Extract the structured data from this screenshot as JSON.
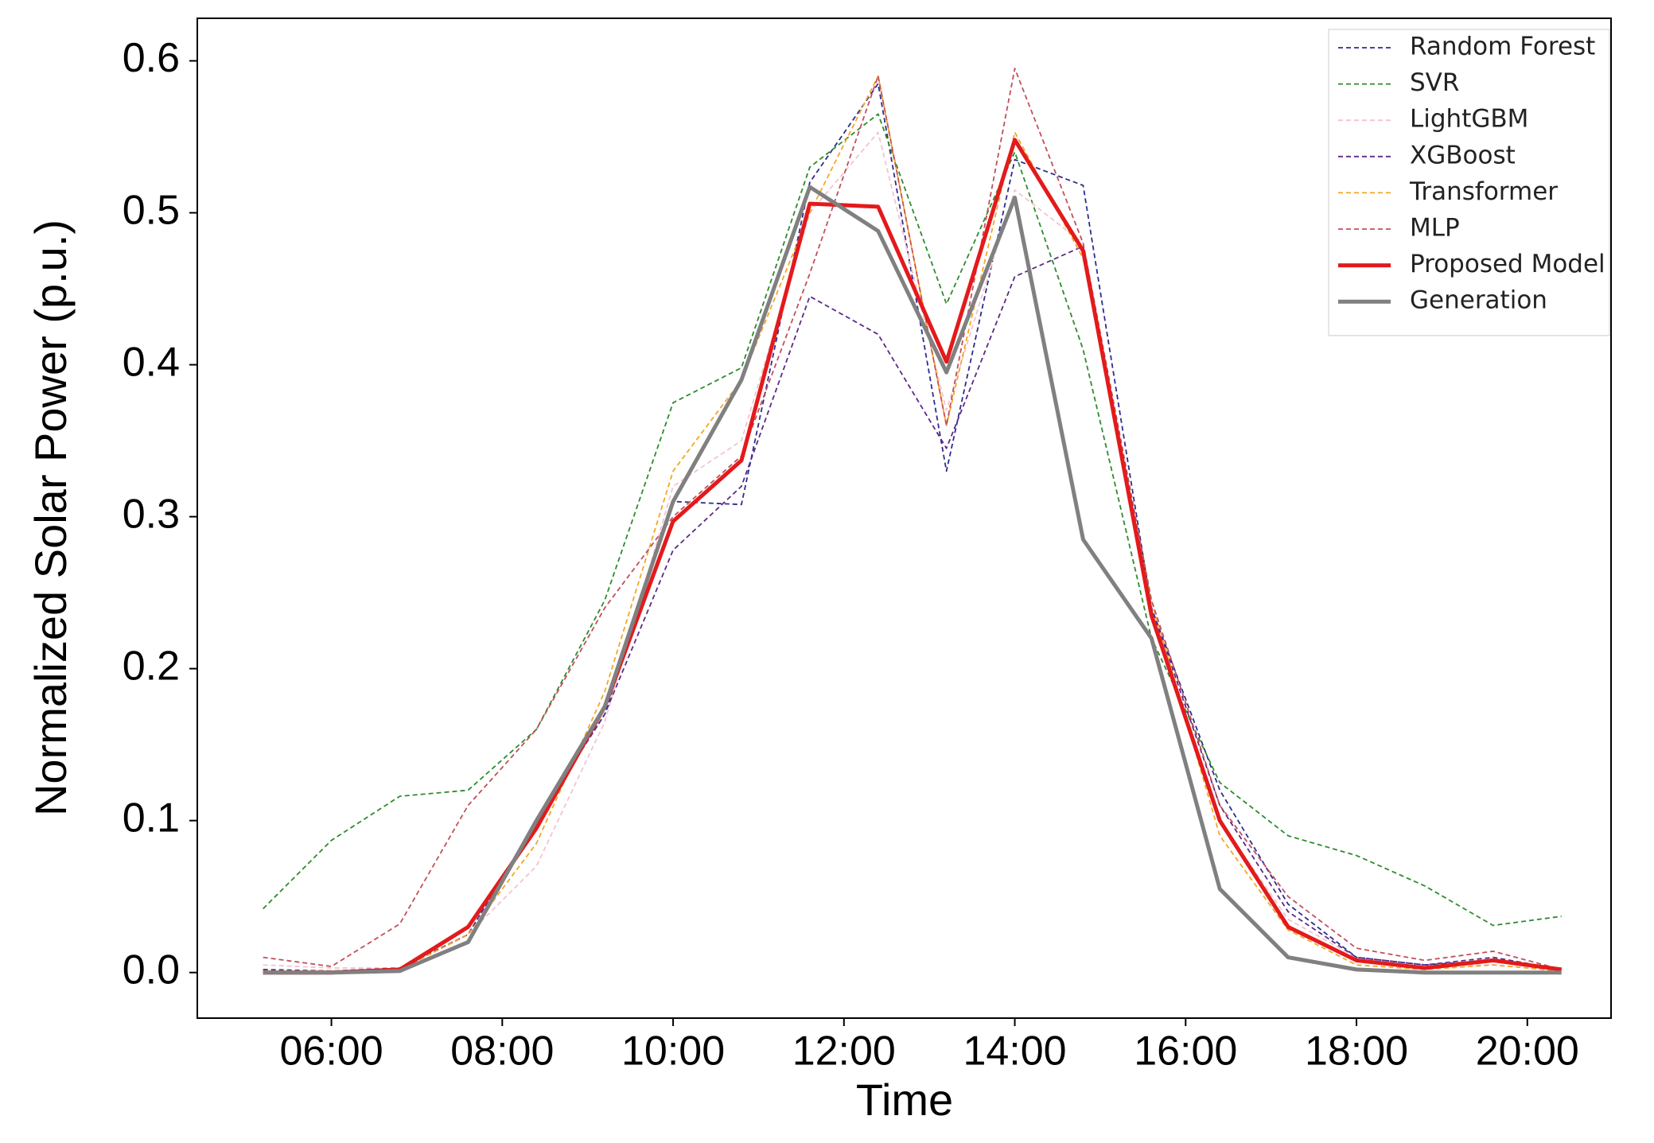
{
  "chart_data": {
    "type": "line",
    "xlabel": "Time",
    "ylabel": "Normalized Solar Power (p.u.)",
    "x": [
      5.2,
      6,
      6.8,
      7.6,
      8.4,
      9.2,
      10,
      10.8,
      11.6,
      12.4,
      13.2,
      14,
      14.8,
      15.6,
      16.4,
      17.2,
      18,
      18.8,
      19.6,
      20.4
    ],
    "xlim": [
      4.43,
      20.98
    ],
    "xticks": [
      {
        "value": 6,
        "label": "06:00"
      },
      {
        "value": 8,
        "label": "08:00"
      },
      {
        "value": 10,
        "label": "10:00"
      },
      {
        "value": 12,
        "label": "12:00"
      },
      {
        "value": 14,
        "label": "14:00"
      },
      {
        "value": 16,
        "label": "16:00"
      },
      {
        "value": 18,
        "label": "18:00"
      },
      {
        "value": 20,
        "label": "20:00"
      }
    ],
    "ylim": [
      -0.03,
      0.628
    ],
    "yticks": [
      {
        "value": 0,
        "label": "0.0"
      },
      0.1,
      0.2,
      0.3,
      0.4,
      0.5,
      0.6
    ],
    "legend": "upper right",
    "series": [
      {
        "name": "Random Forest",
        "color": "#2c2c8f",
        "style": "dashed",
        "values": [
          0.002,
          0.001,
          0.002,
          0.025,
          0.1,
          0.17,
          0.31,
          0.308,
          0.52,
          0.585,
          0.33,
          0.535,
          0.518,
          0.24,
          0.12,
          0.045,
          0.01,
          0.005,
          0.008,
          0.002
        ]
      },
      {
        "name": "SVR",
        "color": "#2e8b2e",
        "style": "dashed",
        "values": [
          0.042,
          0.087,
          0.116,
          0.12,
          0.16,
          0.245,
          0.375,
          0.398,
          0.53,
          0.565,
          0.44,
          0.54,
          0.41,
          0.22,
          0.125,
          0.09,
          0.077,
          0.057,
          0.031,
          0.037
        ]
      },
      {
        "name": "LightGBM",
        "color": "#f2c4d0",
        "style": "dashed",
        "values": [
          0.005,
          0.003,
          0.003,
          0.025,
          0.07,
          0.165,
          0.32,
          0.35,
          0.5,
          0.553,
          0.37,
          0.515,
          0.48,
          0.24,
          0.1,
          0.035,
          0.01,
          0.005,
          0.005,
          0.001
        ]
      },
      {
        "name": "XGBoost",
        "color": "#5b2a86",
        "style": "dashed",
        "values": [
          0.001,
          0.001,
          0.003,
          0.025,
          0.1,
          0.17,
          0.278,
          0.32,
          0.445,
          0.42,
          0.345,
          0.458,
          0.478,
          0.24,
          0.11,
          0.04,
          0.01,
          0.005,
          0.01,
          0.002
        ]
      },
      {
        "name": "Transformer",
        "color": "#f5a623",
        "style": "dashed",
        "values": [
          0.001,
          0.001,
          0.002,
          0.025,
          0.085,
          0.185,
          0.33,
          0.39,
          0.5,
          0.59,
          0.36,
          0.553,
          0.47,
          0.245,
          0.09,
          0.028,
          0.005,
          0.002,
          0.005,
          0.001
        ]
      },
      {
        "name": "MLP",
        "color": "#c0505a",
        "style": "dashed",
        "values": [
          0.01,
          0.004,
          0.032,
          0.11,
          0.16,
          0.24,
          0.3,
          0.34,
          0.46,
          0.59,
          0.36,
          0.595,
          0.48,
          0.245,
          0.11,
          0.05,
          0.016,
          0.008,
          0.014,
          0.002
        ]
      },
      {
        "name": "Proposed Model",
        "color": "#e31a1c",
        "style": "solid",
        "values": [
          0,
          0,
          0.002,
          0.03,
          0.095,
          0.175,
          0.297,
          0.337,
          0.506,
          0.504,
          0.402,
          0.548,
          0.475,
          0.235,
          0.1,
          0.03,
          0.008,
          0.003,
          0.008,
          0.002
        ]
      },
      {
        "name": "Generation",
        "color": "#808080",
        "style": "solid",
        "values": [
          0,
          0,
          0.001,
          0.02,
          0.1,
          0.175,
          0.31,
          0.39,
          0.517,
          0.488,
          0.395,
          0.51,
          0.285,
          0.22,
          0.055,
          0.01,
          0.002,
          0,
          0,
          0
        ]
      }
    ]
  }
}
